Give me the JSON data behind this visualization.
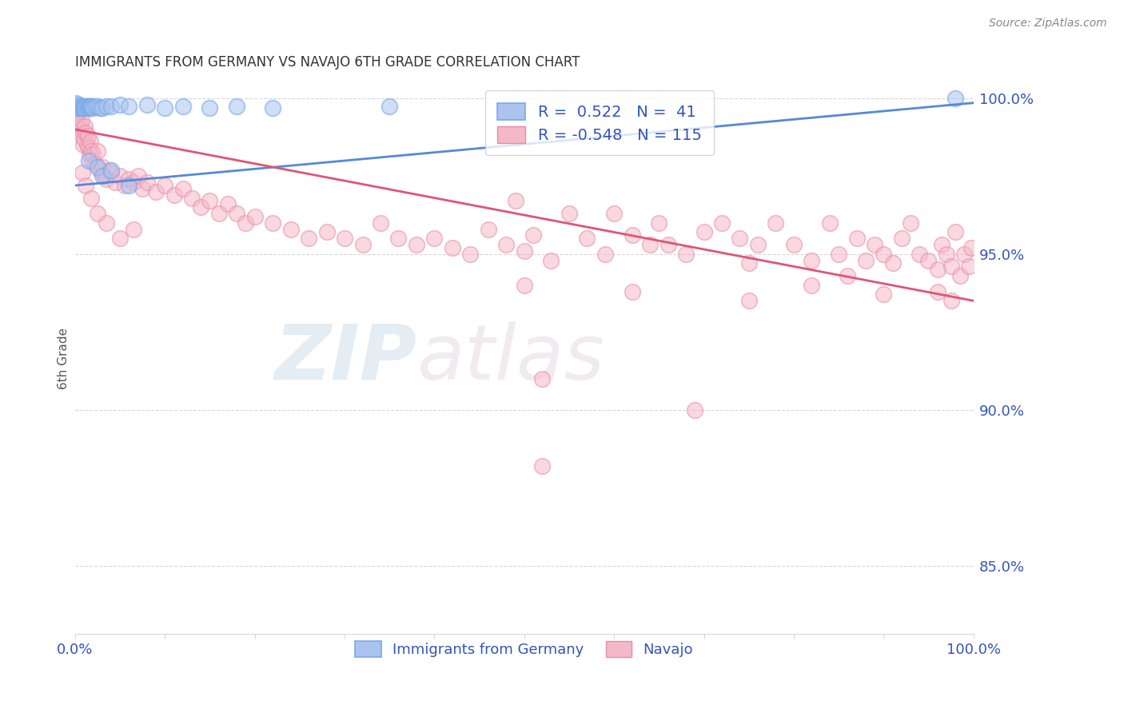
{
  "title": "IMMIGRANTS FROM GERMANY VS NAVAJO 6TH GRADE CORRELATION CHART",
  "source": "Source: ZipAtlas.com",
  "ylabel": "6th Grade",
  "watermark_zip": "ZIP",
  "watermark_atlas": "atlas",
  "right_ytick_labels": [
    "100.0%",
    "95.0%",
    "90.0%",
    "85.0%"
  ],
  "right_ytick_values": [
    1.0,
    0.95,
    0.9,
    0.85
  ],
  "xlim": [
    0.0,
    1.0
  ],
  "ylim": [
    0.828,
    1.005
  ],
  "blue_R": 0.522,
  "blue_N": 41,
  "pink_R": -0.548,
  "pink_N": 115,
  "blue_color": "#aac4f0",
  "pink_color": "#f5b8c8",
  "blue_edge_color": "#7aa8e8",
  "pink_edge_color": "#e88aaa",
  "blue_line_color": "#5588dd",
  "pink_line_color": "#e05575",
  "title_color": "#333333",
  "right_axis_color": "#3355bb",
  "grid_color": "#d8d8d8",
  "blue_trend_start_y": 0.972,
  "blue_trend_end_y": 0.9985,
  "pink_trend_start_y": 0.99,
  "pink_trend_end_y": 0.935,
  "blue_scatter": [
    [
      0.001,
      0.9985
    ],
    [
      0.002,
      0.997
    ],
    [
      0.003,
      0.997
    ],
    [
      0.004,
      0.998
    ],
    [
      0.005,
      0.9975
    ],
    [
      0.006,
      0.9975
    ],
    [
      0.007,
      0.997
    ],
    [
      0.008,
      0.997
    ],
    [
      0.009,
      0.9975
    ],
    [
      0.01,
      0.997
    ],
    [
      0.011,
      0.997
    ],
    [
      0.012,
      0.9975
    ],
    [
      0.013,
      0.9975
    ],
    [
      0.014,
      0.997
    ],
    [
      0.015,
      0.9975
    ],
    [
      0.016,
      0.9975
    ],
    [
      0.017,
      0.997
    ],
    [
      0.018,
      0.9975
    ],
    [
      0.019,
      0.9975
    ],
    [
      0.02,
      0.997
    ],
    [
      0.022,
      0.9975
    ],
    [
      0.025,
      0.9975
    ],
    [
      0.028,
      0.997
    ],
    [
      0.03,
      0.997
    ],
    [
      0.035,
      0.9975
    ],
    [
      0.04,
      0.9975
    ],
    [
      0.05,
      0.998
    ],
    [
      0.06,
      0.9975
    ],
    [
      0.08,
      0.998
    ],
    [
      0.1,
      0.997
    ],
    [
      0.12,
      0.9975
    ],
    [
      0.15,
      0.997
    ],
    [
      0.18,
      0.9975
    ],
    [
      0.22,
      0.997
    ],
    [
      0.015,
      0.98
    ],
    [
      0.025,
      0.978
    ],
    [
      0.03,
      0.975
    ],
    [
      0.04,
      0.977
    ],
    [
      0.06,
      0.972
    ],
    [
      0.35,
      0.9975
    ],
    [
      0.98,
      1.0
    ]
  ],
  "pink_scatter": [
    [
      0.001,
      0.992
    ],
    [
      0.002,
      0.995
    ],
    [
      0.003,
      0.994
    ],
    [
      0.004,
      0.992
    ],
    [
      0.005,
      0.99
    ],
    [
      0.006,
      0.991
    ],
    [
      0.007,
      0.993
    ],
    [
      0.008,
      0.988
    ],
    [
      0.009,
      0.985
    ],
    [
      0.01,
      0.987
    ],
    [
      0.011,
      0.991
    ],
    [
      0.012,
      0.989
    ],
    [
      0.013,
      0.985
    ],
    [
      0.014,
      0.988
    ],
    [
      0.015,
      0.984
    ],
    [
      0.016,
      0.982
    ],
    [
      0.017,
      0.986
    ],
    [
      0.018,
      0.983
    ],
    [
      0.019,
      0.98
    ],
    [
      0.02,
      0.982
    ],
    [
      0.022,
      0.979
    ],
    [
      0.025,
      0.983
    ],
    [
      0.028,
      0.977
    ],
    [
      0.03,
      0.978
    ],
    [
      0.032,
      0.975
    ],
    [
      0.035,
      0.974
    ],
    [
      0.038,
      0.977
    ],
    [
      0.04,
      0.976
    ],
    [
      0.045,
      0.973
    ],
    [
      0.05,
      0.975
    ],
    [
      0.055,
      0.972
    ],
    [
      0.06,
      0.974
    ],
    [
      0.065,
      0.973
    ],
    [
      0.07,
      0.975
    ],
    [
      0.075,
      0.971
    ],
    [
      0.08,
      0.973
    ],
    [
      0.09,
      0.97
    ],
    [
      0.1,
      0.972
    ],
    [
      0.11,
      0.969
    ],
    [
      0.008,
      0.976
    ],
    [
      0.012,
      0.972
    ],
    [
      0.018,
      0.968
    ],
    [
      0.025,
      0.963
    ],
    [
      0.035,
      0.96
    ],
    [
      0.05,
      0.955
    ],
    [
      0.065,
      0.958
    ],
    [
      0.12,
      0.971
    ],
    [
      0.13,
      0.968
    ],
    [
      0.14,
      0.965
    ],
    [
      0.15,
      0.967
    ],
    [
      0.16,
      0.963
    ],
    [
      0.17,
      0.966
    ],
    [
      0.18,
      0.963
    ],
    [
      0.19,
      0.96
    ],
    [
      0.2,
      0.962
    ],
    [
      0.22,
      0.96
    ],
    [
      0.24,
      0.958
    ],
    [
      0.26,
      0.955
    ],
    [
      0.28,
      0.957
    ],
    [
      0.3,
      0.955
    ],
    [
      0.32,
      0.953
    ],
    [
      0.34,
      0.96
    ],
    [
      0.36,
      0.955
    ],
    [
      0.38,
      0.953
    ],
    [
      0.4,
      0.955
    ],
    [
      0.42,
      0.952
    ],
    [
      0.44,
      0.95
    ],
    [
      0.46,
      0.958
    ],
    [
      0.48,
      0.953
    ],
    [
      0.5,
      0.951
    ],
    [
      0.49,
      0.967
    ],
    [
      0.51,
      0.956
    ],
    [
      0.53,
      0.948
    ],
    [
      0.55,
      0.963
    ],
    [
      0.57,
      0.955
    ],
    [
      0.59,
      0.95
    ],
    [
      0.6,
      0.963
    ],
    [
      0.62,
      0.956
    ],
    [
      0.64,
      0.953
    ],
    [
      0.65,
      0.96
    ],
    [
      0.66,
      0.953
    ],
    [
      0.68,
      0.95
    ],
    [
      0.7,
      0.957
    ],
    [
      0.72,
      0.96
    ],
    [
      0.74,
      0.955
    ],
    [
      0.75,
      0.947
    ],
    [
      0.76,
      0.953
    ],
    [
      0.78,
      0.96
    ],
    [
      0.8,
      0.953
    ],
    [
      0.82,
      0.948
    ],
    [
      0.84,
      0.96
    ],
    [
      0.85,
      0.95
    ],
    [
      0.86,
      0.943
    ],
    [
      0.87,
      0.955
    ],
    [
      0.88,
      0.948
    ],
    [
      0.89,
      0.953
    ],
    [
      0.9,
      0.95
    ],
    [
      0.91,
      0.947
    ],
    [
      0.92,
      0.955
    ],
    [
      0.93,
      0.96
    ],
    [
      0.94,
      0.95
    ],
    [
      0.95,
      0.948
    ],
    [
      0.96,
      0.945
    ],
    [
      0.965,
      0.953
    ],
    [
      0.97,
      0.95
    ],
    [
      0.975,
      0.946
    ],
    [
      0.98,
      0.957
    ],
    [
      0.985,
      0.943
    ],
    [
      0.99,
      0.95
    ],
    [
      0.995,
      0.946
    ],
    [
      0.998,
      0.952
    ],
    [
      0.75,
      0.935
    ],
    [
      0.82,
      0.94
    ],
    [
      0.9,
      0.937
    ],
    [
      0.96,
      0.938
    ],
    [
      0.975,
      0.935
    ],
    [
      0.5,
      0.94
    ],
    [
      0.62,
      0.938
    ],
    [
      0.52,
      0.91
    ],
    [
      0.69,
      0.9
    ],
    [
      0.52,
      0.882
    ]
  ]
}
